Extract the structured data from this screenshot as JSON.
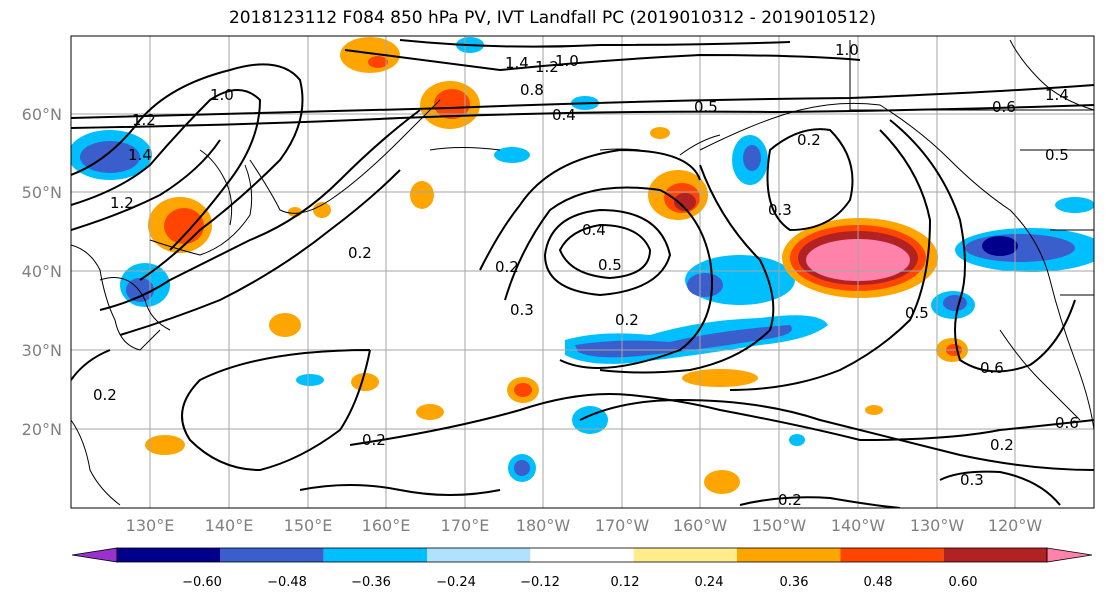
{
  "title": "2018123112 F084 850 hPa PV, IVT Landfall PC (2019010312 - 2019010512)",
  "map": {
    "lat_labels": [
      "60°N",
      "50°N",
      "40°N",
      "30°N",
      "20°N"
    ],
    "lon_labels": [
      "130°E",
      "140°E",
      "150°E",
      "160°E",
      "170°E",
      "180°W",
      "170°W",
      "160°W",
      "150°W",
      "140°W",
      "130°W",
      "120°W"
    ],
    "contour_labels": [
      "1.4",
      "1.2",
      "1.0",
      "0.8",
      "0.5",
      "0.4",
      "0.2",
      "1.2",
      "1.4",
      "1.2",
      "1.0",
      "0.2",
      "0.3",
      "0.4",
      "0.5",
      "0.2",
      "0.3",
      "0.2",
      "0.2",
      "0.6",
      "0.6",
      "0.2",
      "0.3",
      "0.2",
      "0.5",
      "0.6",
      "0.5",
      "0.2",
      "1.0",
      "1.4"
    ]
  },
  "colorbar": {
    "ticks": [
      "−0.60",
      "−0.48",
      "−0.36",
      "−0.24",
      "−0.12",
      "0.12",
      "0.24",
      "0.36",
      "0.48",
      "0.60"
    ],
    "colors": [
      "#9932cc",
      "#00008b",
      "#3a5fcd",
      "#00bfff",
      "#b0e2ff",
      "#ffffff",
      "#ffec8b",
      "#ffa500",
      "#ff4500",
      "#b22222",
      "#ff82ab"
    ]
  }
}
